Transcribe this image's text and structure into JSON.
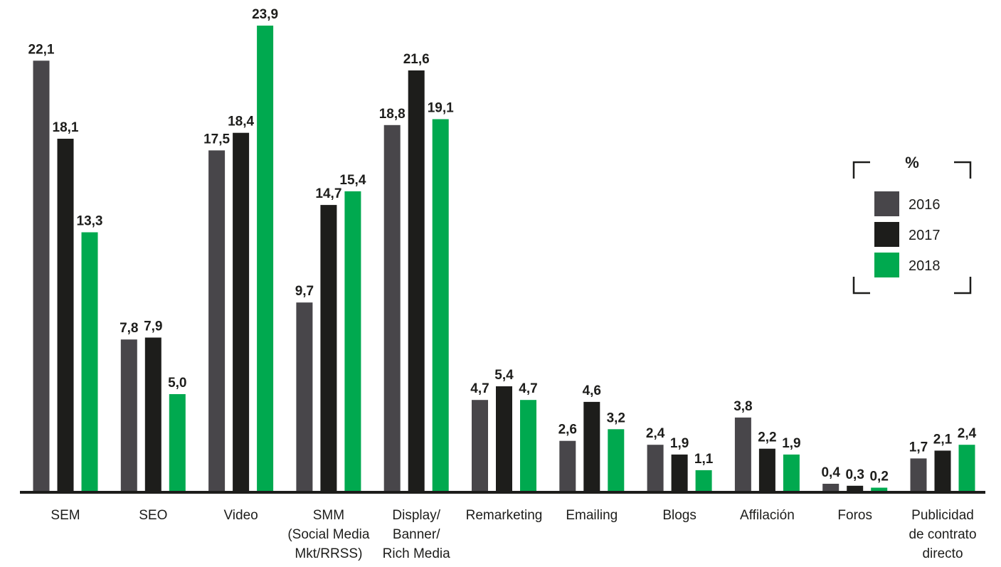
{
  "chart_data": {
    "type": "bar",
    "categories": [
      [
        "SEM"
      ],
      [
        "SEO"
      ],
      [
        "Video"
      ],
      [
        "SMM",
        "(Social Media",
        "Mkt/RRSS)"
      ],
      [
        "Display/",
        "Banner/",
        "Rich Media"
      ],
      [
        "Remarketing"
      ],
      [
        "Emailing"
      ],
      [
        "Blogs"
      ],
      [
        "Affilación"
      ],
      [
        "Foros"
      ],
      [
        "Publicidad",
        "de contrato",
        "directo"
      ]
    ],
    "series": [
      {
        "name": "2016",
        "color": "#48464a",
        "values": [
          22.1,
          7.8,
          17.5,
          9.7,
          18.8,
          4.7,
          2.6,
          2.4,
          3.8,
          0.4,
          1.7
        ],
        "labels": [
          "22,1",
          "7,8",
          "17,5",
          "9,7",
          "18,8",
          "4,7",
          "2,6",
          "2,4",
          "3,8",
          "0,4",
          "1,7"
        ]
      },
      {
        "name": "2017",
        "color": "#1d1d1b",
        "values": [
          18.1,
          7.9,
          18.4,
          14.7,
          21.6,
          5.4,
          4.6,
          1.9,
          2.2,
          0.3,
          2.1
        ],
        "labels": [
          "18,1",
          "7,9",
          "18,4",
          "14,7",
          "21,6",
          "5,4",
          "4,6",
          "1,9",
          "2,2",
          "0,3",
          "2,1"
        ]
      },
      {
        "name": "2018",
        "color": "#00a94f",
        "values": [
          13.3,
          5.0,
          23.9,
          15.4,
          19.1,
          4.7,
          3.2,
          1.1,
          1.9,
          0.2,
          2.4
        ],
        "labels": [
          "13,3",
          "5,0",
          "23,9",
          "15,4",
          "19,1",
          "4,7",
          "3,2",
          "1,1",
          "1,9",
          "0,2",
          "2,4"
        ]
      }
    ],
    "legend": {
      "title": "%",
      "position": "right"
    },
    "ylim": [
      0,
      24.5
    ],
    "grid": false
  }
}
